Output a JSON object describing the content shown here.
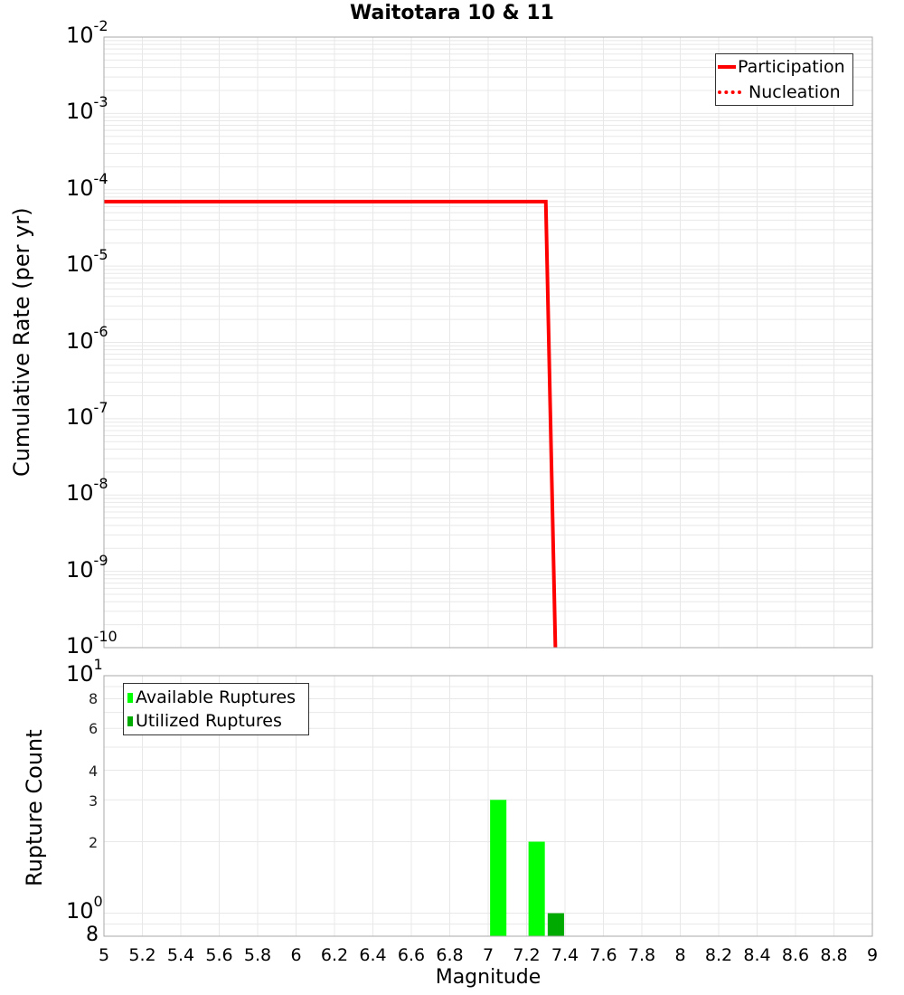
{
  "title": "Waitotara 10 & 11",
  "top_panel": {
    "ylabel": "Cumulative Rate (per yr)",
    "yticks": [
      {
        "base": "10",
        "exp": "-2"
      },
      {
        "base": "10",
        "exp": "-3"
      },
      {
        "base": "10",
        "exp": "-4"
      },
      {
        "base": "10",
        "exp": "-5"
      },
      {
        "base": "10",
        "exp": "-6"
      },
      {
        "base": "10",
        "exp": "-7"
      },
      {
        "base": "10",
        "exp": "-8"
      },
      {
        "base": "10",
        "exp": "-9"
      },
      {
        "base": "10",
        "exp": "-10"
      }
    ],
    "legend": [
      {
        "label": "Participation",
        "style": "solid",
        "color": "#ff0000"
      },
      {
        "label": "Nucleation",
        "style": "dotted",
        "color": "#ff0000"
      }
    ]
  },
  "bottom_panel": {
    "ylabel": "Rupture Count",
    "yticks_major": [
      {
        "base": "10",
        "exp": "1"
      },
      {
        "base": "10",
        "exp": "0"
      }
    ],
    "yticks_minor": [
      "8",
      "6",
      "4",
      "3",
      "2",
      "8"
    ],
    "legend": [
      {
        "label": "Available Ruptures",
        "color": "#00ff00"
      },
      {
        "label": "Utilized Ruptures",
        "color": "#00aa00"
      }
    ]
  },
  "xaxis": {
    "label": "Magnitude",
    "ticks": [
      "5",
      "5.2",
      "5.4",
      "5.6",
      "5.8",
      "6",
      "6.2",
      "6.4",
      "6.6",
      "6.8",
      "7",
      "7.2",
      "7.4",
      "7.6",
      "7.8",
      "8",
      "8.2",
      "8.4",
      "8.6",
      "8.8",
      "9"
    ]
  },
  "chart_data": [
    {
      "type": "line",
      "title": "Waitotara 10 & 11",
      "xlabel": "Magnitude",
      "ylabel": "Cumulative Rate (per yr)",
      "xlim": [
        5,
        9
      ],
      "ylim": [
        1e-10,
        0.01
      ],
      "yscale": "log",
      "grid": true,
      "legend_position": "top-right",
      "series": [
        {
          "name": "Participation",
          "style": "solid",
          "color": "#ff0000",
          "x": [
            5.0,
            7.3,
            7.35
          ],
          "y": [
            7e-05,
            7e-05,
            1e-10
          ]
        },
        {
          "name": "Nucleation",
          "style": "dotted",
          "color": "#ff0000",
          "x": [
            5.0,
            7.3,
            7.35
          ],
          "y": [
            7e-05,
            7e-05,
            1e-10
          ]
        }
      ]
    },
    {
      "type": "bar",
      "xlabel": "Magnitude",
      "ylabel": "Rupture Count",
      "xlim": [
        5,
        9
      ],
      "ylim": [
        0.8,
        10
      ],
      "yscale": "log",
      "grid": true,
      "legend_position": "top-left",
      "series": [
        {
          "name": "Available Ruptures",
          "color": "#00ff00",
          "x": [
            7.05,
            7.25
          ],
          "values": [
            3,
            2
          ]
        },
        {
          "name": "Utilized Ruptures",
          "color": "#00aa00",
          "x": [
            7.35
          ],
          "values": [
            1
          ]
        }
      ]
    }
  ]
}
